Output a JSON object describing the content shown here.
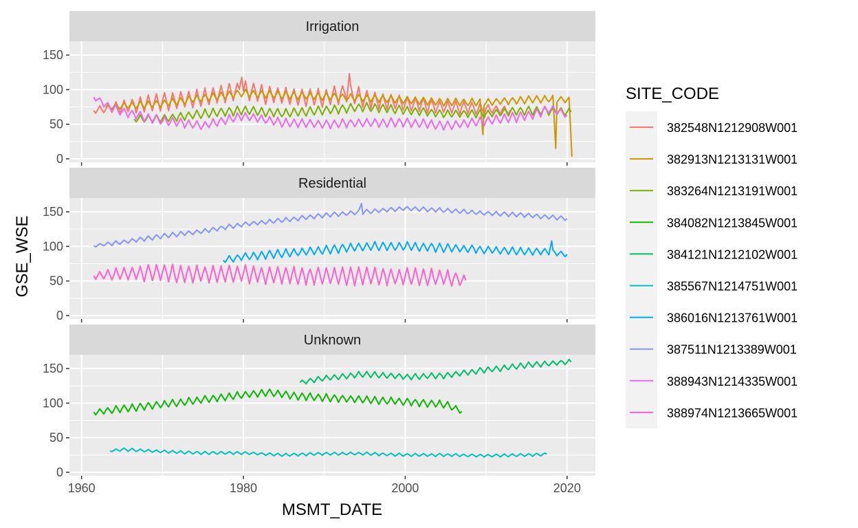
{
  "chart_data": {
    "type": "line",
    "facet_variable": "land_use",
    "xlabel": "MSMT_DATE",
    "ylabel": "GSE_WSE",
    "xlim": [
      1958.5,
      2023.5
    ],
    "ylim": [
      -5,
      170
    ],
    "x_ticks": [
      1960,
      1980,
      2000,
      2020
    ],
    "y_ticks": [
      0,
      50,
      100,
      150
    ],
    "grid": true,
    "legend": {
      "title": "SITE_CODE",
      "position": "right"
    },
    "panels": [
      {
        "label": "Irrigation"
      },
      {
        "label": "Residential"
      },
      {
        "label": "Unknown"
      }
    ],
    "series": [
      {
        "name": "382548N1212908W001",
        "color": "#F8766D",
        "panel": "Irrigation",
        "x": [
          1961.5,
          1965,
          1970,
          1975,
          1978,
          1980,
          1983,
          1987,
          1990,
          1993,
          1996,
          2000,
          2005,
          2010,
          2013
        ],
        "y": [
          70,
          75,
          82,
          88,
          95,
          100,
          92,
          90,
          88,
          95,
          85,
          80,
          75,
          72,
          70
        ],
        "amplitude": [
          4,
          9,
          12,
          12,
          12,
          12,
          12,
          12,
          12,
          14,
          12,
          10,
          9,
          7,
          5
        ],
        "peaks": [
          {
            "x": 1979.8,
            "y": 118
          },
          {
            "x": 1993.1,
            "y": 123
          }
        ]
      },
      {
        "name": "382913N1213131W001",
        "color": "#CD9600",
        "panel": "Irrigation",
        "x": [
          1963,
          1970,
          1975,
          1980,
          1985,
          1990,
          1995,
          2000,
          2005,
          2010,
          2015,
          2018,
          2020.5
        ],
        "y": [
          75,
          80,
          88,
          95,
          92,
          90,
          88,
          85,
          82,
          82,
          85,
          87,
          85
        ],
        "amplitude": [
          4,
          5,
          5,
          5,
          5,
          5,
          5,
          5,
          5,
          5,
          5,
          5,
          4
        ],
        "dips": [
          {
            "x": 2009.6,
            "y": 35
          },
          {
            "x": 2018.6,
            "y": 15
          },
          {
            "x": 2020.6,
            "y": 3
          }
        ]
      },
      {
        "name": "383264N1213191W001",
        "color": "#7CAE00",
        "panel": "Irrigation",
        "x": [
          1966.5,
          1970,
          1975,
          1980,
          1985,
          1990,
          1995,
          2000,
          2005,
          2010,
          2015,
          2020.5
        ],
        "y": [
          58,
          58,
          65,
          70,
          66,
          70,
          75,
          70,
          65,
          65,
          70,
          68
        ],
        "amplitude": [
          5,
          5,
          6,
          6,
          6,
          6,
          6,
          6,
          5,
          5,
          6,
          5
        ]
      },
      {
        "name": "384082N1213845W001",
        "color": "#0CB702",
        "panel": "Unknown",
        "x": [
          1961.5,
          1965,
          1970,
          1975,
          1980,
          1983,
          1987,
          1990,
          1995,
          2000,
          2005,
          2007
        ],
        "y": [
          87,
          92,
          98,
          105,
          112,
          115,
          110,
          108,
          105,
          102,
          98,
          88
        ],
        "amplitude": [
          4,
          5,
          5,
          5,
          5,
          5,
          5,
          5,
          5,
          5,
          5,
          4
        ]
      },
      {
        "name": "384121N1212102W001",
        "color": "#00BE67",
        "panel": "Unknown",
        "x": [
          1987,
          1990,
          1995,
          2000,
          2005,
          2010,
          2015,
          2020.5
        ],
        "y": [
          130,
          136,
          142,
          138,
          140,
          148,
          155,
          160
        ],
        "amplitude": [
          3,
          4,
          4,
          4,
          4,
          4,
          4,
          3
        ]
      },
      {
        "name": "385567N1214751W001",
        "color": "#00BFC4",
        "panel": "Unknown",
        "x": [
          1963.5,
          1965,
          1970,
          1975,
          1980,
          1985,
          1990,
          1995,
          2000,
          2005,
          2010,
          2015,
          2017.5
        ],
        "y": [
          31,
          33,
          30,
          28,
          28,
          25,
          27,
          27,
          25,
          25,
          24,
          25,
          26
        ],
        "amplitude": [
          1.5,
          2,
          2,
          2,
          2,
          2,
          2,
          2,
          2,
          2,
          2,
          2,
          2
        ]
      },
      {
        "name": "386016N1213761W001",
        "color": "#00A9FF",
        "panel": "Residential",
        "x": [
          1977.5,
          1980,
          1985,
          1990,
          1995,
          2000,
          2005,
          2010,
          2015,
          2018,
          2020.2
        ],
        "y": [
          80,
          85,
          90,
          95,
          100,
          100,
          98,
          95,
          93,
          92,
          88
        ],
        "amplitude": [
          4,
          5,
          6,
          6,
          6,
          6,
          6,
          5,
          5,
          4,
          3
        ],
        "peaks": [
          {
            "x": 2018.1,
            "y": 108
          }
        ]
      },
      {
        "name": "387511N1213389W001",
        "color": "#8494FF",
        "panel": "Residential",
        "x": [
          1961.5,
          1965,
          1970,
          1975,
          1980,
          1985,
          1990,
          1995,
          2000,
          2005,
          2010,
          2015,
          2020.2
        ],
        "y": [
          101,
          106,
          115,
          122,
          132,
          138,
          145,
          150,
          155,
          152,
          148,
          145,
          140
        ],
        "amplitude": [
          2,
          3,
          3,
          3,
          3,
          3,
          3,
          3,
          3,
          3,
          3,
          3,
          3
        ],
        "peaks": [
          {
            "x": 1994.6,
            "y": 162
          }
        ]
      },
      {
        "name": "388943N1214335W001",
        "color": "#ED68ED",
        "panel": "Irrigation",
        "x": [
          1961.5,
          1963,
          1965,
          1970,
          1975,
          1980,
          1985,
          1990,
          1995,
          2000,
          2005,
          2010,
          2015,
          2018,
          2020.2
        ],
        "y": [
          90,
          78,
          68,
          55,
          48,
          62,
          52,
          50,
          52,
          53,
          48,
          55,
          62,
          72,
          63
        ],
        "amplitude": [
          4,
          5,
          6,
          6,
          6,
          6,
          6,
          6,
          6,
          6,
          6,
          6,
          7,
          6,
          4
        ]
      },
      {
        "name": "388974N1213665W001",
        "color": "#FF61C9",
        "panel": "Residential",
        "x": [
          1961.5,
          1965,
          1970,
          1975,
          1980,
          1985,
          1990,
          1995,
          2000,
          2005,
          2007.5
        ],
        "y": [
          58,
          60,
          62,
          60,
          60,
          58,
          57,
          57,
          56,
          55,
          50
        ],
        "amplitude": [
          5,
          9,
          12,
          12,
          12,
          12,
          12,
          12,
          12,
          11,
          8
        ]
      }
    ]
  }
}
